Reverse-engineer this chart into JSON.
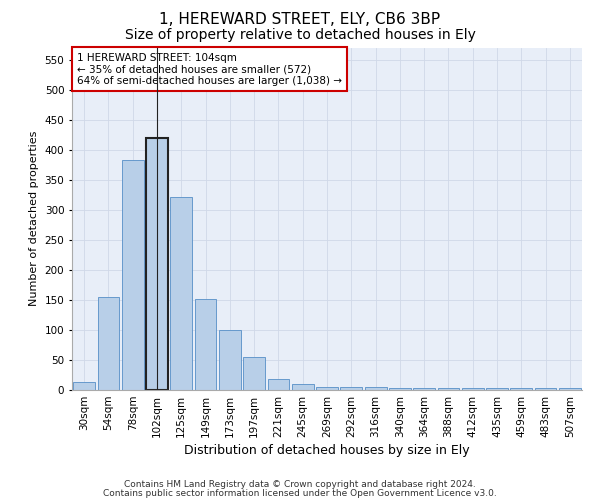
{
  "title": "1, HEREWARD STREET, ELY, CB6 3BP",
  "subtitle": "Size of property relative to detached houses in Ely",
  "xlabel": "Distribution of detached houses by size in Ely",
  "ylabel": "Number of detached properties",
  "categories": [
    "30sqm",
    "54sqm",
    "78sqm",
    "102sqm",
    "125sqm",
    "149sqm",
    "173sqm",
    "197sqm",
    "221sqm",
    "245sqm",
    "269sqm",
    "292sqm",
    "316sqm",
    "340sqm",
    "364sqm",
    "388sqm",
    "412sqm",
    "435sqm",
    "459sqm",
    "483sqm",
    "507sqm"
  ],
  "values": [
    13,
    155,
    383,
    420,
    322,
    152,
    100,
    55,
    18,
    10,
    5,
    5,
    5,
    3,
    3,
    3,
    3,
    3,
    3,
    3,
    3
  ],
  "bar_color": "#b8cfe8",
  "bar_edge_color": "#6699cc",
  "highlight_bar_index": 3,
  "highlight_bar_edge_color": "#222222",
  "annotation_line1": "1 HEREWARD STREET: 104sqm",
  "annotation_line2": "← 35% of detached houses are smaller (572)",
  "annotation_line3": "64% of semi-detached houses are larger (1,038) →",
  "annotation_box_color": "#ffffff",
  "annotation_box_edge_color": "#cc0000",
  "ylim": [
    0,
    570
  ],
  "yticks": [
    0,
    50,
    100,
    150,
    200,
    250,
    300,
    350,
    400,
    450,
    500,
    550
  ],
  "grid_color": "#d0d8e8",
  "bg_color": "#e8eef8",
  "footer_line1": "Contains HM Land Registry data © Crown copyright and database right 2024.",
  "footer_line2": "Contains public sector information licensed under the Open Government Licence v3.0.",
  "title_fontsize": 11,
  "subtitle_fontsize": 10,
  "xlabel_fontsize": 9,
  "ylabel_fontsize": 8,
  "tick_fontsize": 7.5,
  "annotation_fontsize": 7.5,
  "footer_fontsize": 6.5
}
